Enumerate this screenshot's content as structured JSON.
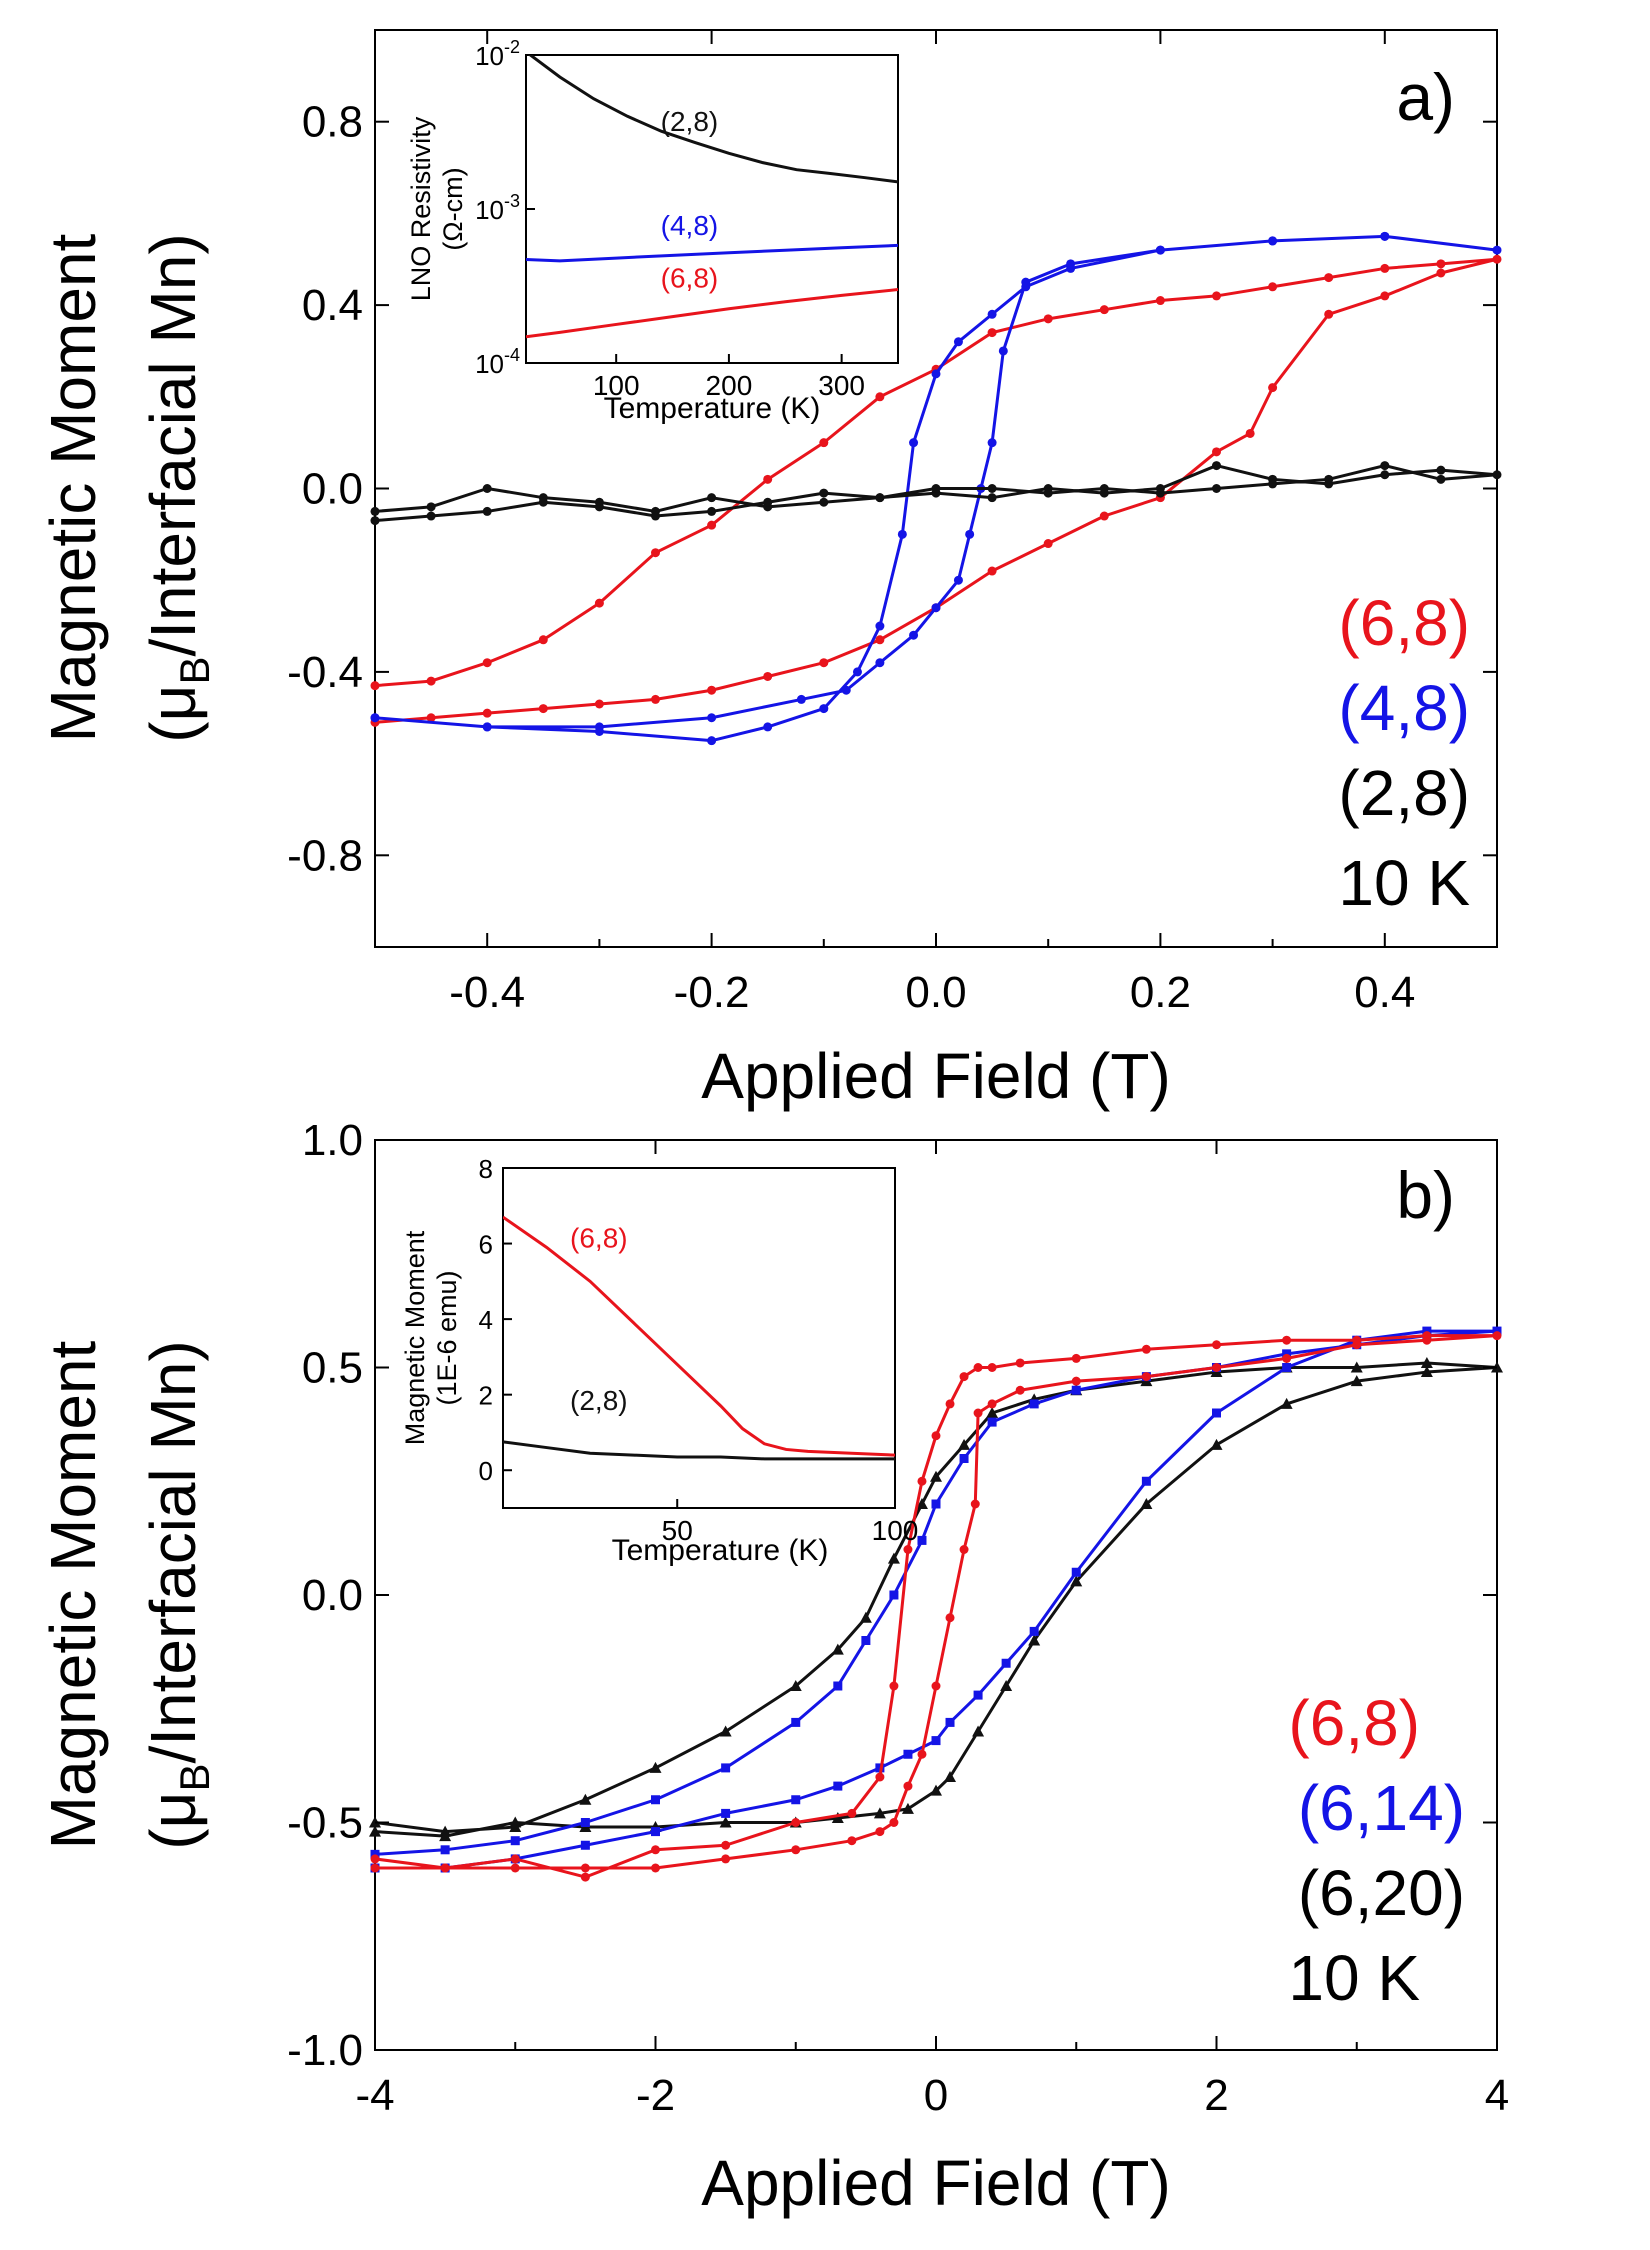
{
  "chart_data": [
    {
      "panel": "a)",
      "type": "line",
      "title": "",
      "xlabel": "Applied Field (T)",
      "ylabel_line1": "Magnetic Moment",
      "ylabel_line2_pre": "(μ",
      "ylabel_line2_sub": "B",
      "ylabel_line2_post": "/Interfacial Mn)",
      "xlim": [
        -0.5,
        0.5
      ],
      "ylim": [
        -1.0,
        1.0
      ],
      "xticks": [
        -0.4,
        -0.2,
        0.0,
        0.2,
        0.4
      ],
      "xtick_labels": [
        "-0.4",
        "-0.2",
        "0.0",
        "0.2",
        "0.4"
      ],
      "yticks": [
        -0.8,
        -0.4,
        0.0,
        0.4,
        0.8
      ],
      "ytick_labels": [
        "-0.8",
        "-0.4",
        "0.0",
        "0.4",
        "0.8"
      ],
      "legend": [
        "(6,8)",
        "(4,8)",
        "(2,8)",
        "10 K"
      ],
      "series": [
        {
          "name": "(6,8)",
          "color": "#e8141c",
          "marker": "circle",
          "x": [
            -0.5,
            -0.45,
            -0.4,
            -0.35,
            -0.3,
            -0.25,
            -0.2,
            -0.15,
            -0.1,
            -0.05,
            0.0,
            0.05,
            0.1,
            0.15,
            0.2,
            0.25,
            0.3,
            0.35,
            0.4,
            0.45,
            0.5,
            0.45,
            0.4,
            0.35,
            0.3,
            0.28,
            0.25,
            0.2,
            0.15,
            0.1,
            0.05,
            0.0,
            -0.05,
            -0.1,
            -0.15,
            -0.2,
            -0.25,
            -0.3,
            -0.35,
            -0.4,
            -0.45,
            -0.5
          ],
          "y": [
            -0.43,
            -0.42,
            -0.38,
            -0.33,
            -0.25,
            -0.14,
            -0.08,
            0.02,
            0.1,
            0.2,
            0.26,
            0.34,
            0.37,
            0.39,
            0.41,
            0.42,
            0.44,
            0.46,
            0.48,
            0.49,
            0.5,
            0.47,
            0.42,
            0.38,
            0.22,
            0.12,
            0.08,
            -0.02,
            -0.06,
            -0.12,
            -0.18,
            -0.26,
            -0.33,
            -0.38,
            -0.41,
            -0.44,
            -0.46,
            -0.47,
            -0.48,
            -0.49,
            -0.5,
            -0.51
          ]
        },
        {
          "name": "(4,8)",
          "color": "#1414e6",
          "marker": "circle",
          "x": [
            -0.5,
            -0.4,
            -0.3,
            -0.2,
            -0.15,
            -0.1,
            -0.07,
            -0.05,
            -0.03,
            -0.02,
            0.0,
            0.02,
            0.05,
            0.08,
            0.12,
            0.2,
            0.3,
            0.4,
            0.5,
            0.4,
            0.3,
            0.2,
            0.12,
            0.08,
            0.06,
            0.05,
            0.04,
            0.03,
            0.02,
            0.0,
            -0.02,
            -0.05,
            -0.08,
            -0.12,
            -0.2,
            -0.3,
            -0.4,
            -0.5
          ],
          "y": [
            -0.5,
            -0.52,
            -0.53,
            -0.55,
            -0.52,
            -0.48,
            -0.4,
            -0.3,
            -0.1,
            0.1,
            0.25,
            0.32,
            0.38,
            0.44,
            0.48,
            0.52,
            0.54,
            0.55,
            0.52,
            0.55,
            0.54,
            0.52,
            0.49,
            0.45,
            0.3,
            0.1,
            0.0,
            -0.1,
            -0.2,
            -0.26,
            -0.32,
            -0.38,
            -0.44,
            -0.46,
            -0.5,
            -0.52,
            -0.52,
            -0.5
          ]
        },
        {
          "name": "(2,8)",
          "color": "#111111",
          "marker": "circle",
          "x": [
            -0.5,
            -0.45,
            -0.4,
            -0.35,
            -0.3,
            -0.25,
            -0.2,
            -0.15,
            -0.1,
            -0.05,
            0.0,
            0.05,
            0.1,
            0.15,
            0.2,
            0.25,
            0.3,
            0.35,
            0.4,
            0.45,
            0.5,
            0.45,
            0.4,
            0.35,
            0.3,
            0.25,
            0.2,
            0.15,
            0.1,
            0.05,
            0.0,
            -0.05,
            -0.1,
            -0.15,
            -0.2,
            -0.25,
            -0.3,
            -0.35,
            -0.4,
            -0.45,
            -0.5
          ],
          "y": [
            -0.05,
            -0.04,
            0.0,
            -0.02,
            -0.03,
            -0.05,
            -0.02,
            -0.04,
            -0.03,
            -0.02,
            -0.01,
            -0.02,
            0.0,
            -0.01,
            0.0,
            0.05,
            0.02,
            0.01,
            0.03,
            0.04,
            0.03,
            0.02,
            0.05,
            0.02,
            0.01,
            0.0,
            -0.01,
            0.0,
            -0.01,
            0.0,
            0.0,
            -0.02,
            -0.01,
            -0.03,
            -0.05,
            -0.06,
            -0.04,
            -0.03,
            -0.05,
            -0.06,
            -0.07
          ]
        }
      ],
      "inset": {
        "type": "line",
        "xlabel": "Temperature (K)",
        "ylabel_line1": "LNO Resistivity",
        "ylabel_line2": "(Ω-cm)",
        "yscale": "log",
        "xlim": [
          20,
          350
        ],
        "ylim": [
          0.0001,
          0.01
        ],
        "xticks": [
          100,
          200,
          300
        ],
        "xtick_labels": [
          "100",
          "200",
          "300"
        ],
        "ytick_exponents": [
          -4,
          -3,
          -2
        ],
        "ytick_base": "10",
        "series": [
          {
            "name": "(2,8)",
            "color": "#111111",
            "x": [
              20,
              50,
              80,
              110,
              140,
              170,
              200,
              230,
              260,
              290,
              320,
              350
            ],
            "y": [
              0.0105,
              0.0072,
              0.0052,
              0.004,
              0.0032,
              0.0027,
              0.0023,
              0.002,
              0.0018,
              0.0017,
              0.0016,
              0.0015
            ]
          },
          {
            "name": "(4,8)",
            "color": "#1414e6",
            "x": [
              20,
              50,
              100,
              150,
              200,
              250,
              300,
              350
            ],
            "y": [
              0.00047,
              0.00046,
              0.00048,
              0.0005,
              0.00052,
              0.00054,
              0.00056,
              0.00058
            ]
          },
          {
            "name": "(6,8)",
            "color": "#e8141c",
            "x": [
              20,
              50,
              100,
              150,
              200,
              250,
              300,
              350
            ],
            "y": [
              0.000148,
              0.000158,
              0.000178,
              0.0002,
              0.000225,
              0.00025,
              0.000275,
              0.0003
            ]
          }
        ],
        "labels": [
          {
            "text": "(2,8)",
            "color": "#111111",
            "x": 165,
            "y": 0.0032
          },
          {
            "text": "(4,8)",
            "color": "#1414e6",
            "x": 165,
            "y": 0.00068
          },
          {
            "text": "(6,8)",
            "color": "#e8141c",
            "x": 165,
            "y": 0.00031
          }
        ]
      }
    },
    {
      "panel": "b)",
      "type": "line",
      "title": "",
      "xlabel": "Applied Field (T)",
      "ylabel_line1": "Magnetic Moment",
      "ylabel_line2_pre": "(μ",
      "ylabel_line2_sub": "B",
      "ylabel_line2_post": "/Interfacial Mn)",
      "xlim": [
        -4,
        4
      ],
      "ylim": [
        -1.0,
        1.0
      ],
      "xticks": [
        -4,
        -2,
        0,
        2,
        4
      ],
      "xtick_labels": [
        "-4",
        "-2",
        "0",
        "2",
        "4"
      ],
      "yticks": [
        -1.0,
        -0.5,
        0.0,
        0.5,
        1.0
      ],
      "ytick_labels": [
        "-1.0",
        "-0.5",
        "0.0",
        "0.5",
        "1.0"
      ],
      "legend": [
        "(6,8)",
        "(6,14)",
        "(6,20)",
        "10 K"
      ],
      "series": [
        {
          "name": "(6,20)",
          "color": "#111111",
          "marker": "triangle",
          "x": [
            -4,
            -3.5,
            -3,
            -2.5,
            -2,
            -1.5,
            -1,
            -0.7,
            -0.5,
            -0.3,
            -0.1,
            0,
            0.2,
            0.4,
            0.7,
            1,
            1.5,
            2,
            2.5,
            3,
            3.5,
            4,
            3.5,
            3,
            2.5,
            2,
            1.5,
            1,
            0.7,
            0.5,
            0.3,
            0.1,
            0,
            -0.2,
            -0.4,
            -0.7,
            -1,
            -1.5,
            -2,
            -2.5,
            -3,
            -3.5,
            -4
          ],
          "y": [
            -0.5,
            -0.52,
            -0.51,
            -0.45,
            -0.38,
            -0.3,
            -0.2,
            -0.12,
            -0.05,
            0.08,
            0.2,
            0.26,
            0.33,
            0.4,
            0.43,
            0.45,
            0.47,
            0.49,
            0.5,
            0.5,
            0.51,
            0.5,
            0.49,
            0.47,
            0.42,
            0.33,
            0.2,
            0.03,
            -0.1,
            -0.2,
            -0.3,
            -0.4,
            -0.43,
            -0.47,
            -0.48,
            -0.49,
            -0.5,
            -0.5,
            -0.51,
            -0.51,
            -0.5,
            -0.53,
            -0.52
          ]
        },
        {
          "name": "(6,14)",
          "color": "#1414e6",
          "marker": "square",
          "x": [
            -4,
            -3.5,
            -3,
            -2.5,
            -2,
            -1.5,
            -1,
            -0.7,
            -0.5,
            -0.3,
            -0.1,
            0,
            0.2,
            0.4,
            0.7,
            1,
            1.5,
            2,
            2.5,
            3,
            3.5,
            4,
            3.5,
            3,
            2.5,
            2,
            1.5,
            1,
            0.7,
            0.5,
            0.3,
            0.1,
            0,
            -0.2,
            -0.4,
            -0.7,
            -1,
            -1.5,
            -2,
            -2.5,
            -3,
            -3.5,
            -4
          ],
          "y": [
            -0.57,
            -0.56,
            -0.54,
            -0.5,
            -0.45,
            -0.38,
            -0.28,
            -0.2,
            -0.1,
            0.0,
            0.12,
            0.2,
            0.3,
            0.38,
            0.42,
            0.45,
            0.48,
            0.5,
            0.53,
            0.55,
            0.57,
            0.58,
            0.58,
            0.56,
            0.5,
            0.4,
            0.25,
            0.05,
            -0.08,
            -0.15,
            -0.22,
            -0.28,
            -0.32,
            -0.35,
            -0.38,
            -0.42,
            -0.45,
            -0.48,
            -0.52,
            -0.55,
            -0.58,
            -0.6,
            -0.6
          ]
        },
        {
          "name": "(6,8)",
          "color": "#e8141c",
          "marker": "circle",
          "x": [
            -4,
            -3.5,
            -3,
            -2.5,
            -2,
            -1.5,
            -1,
            -0.6,
            -0.4,
            -0.3,
            -0.2,
            -0.1,
            0,
            0.1,
            0.2,
            0.3,
            0.4,
            0.6,
            1,
            1.5,
            2,
            2.5,
            3,
            3.5,
            4,
            3.5,
            3,
            2.5,
            2,
            1.5,
            1,
            0.6,
            0.4,
            0.3,
            0.28,
            0.2,
            0.1,
            0,
            -0.1,
            -0.2,
            -0.3,
            -0.4,
            -0.6,
            -1,
            -1.5,
            -2,
            -2.5,
            -3,
            -3.5,
            -4
          ],
          "y": [
            -0.58,
            -0.6,
            -0.58,
            -0.62,
            -0.56,
            -0.55,
            -0.5,
            -0.48,
            -0.4,
            -0.2,
            0.1,
            0.25,
            0.35,
            0.42,
            0.48,
            0.5,
            0.5,
            0.51,
            0.52,
            0.54,
            0.55,
            0.56,
            0.56,
            0.57,
            0.57,
            0.56,
            0.55,
            0.52,
            0.5,
            0.48,
            0.47,
            0.45,
            0.42,
            0.4,
            0.2,
            0.1,
            -0.05,
            -0.2,
            -0.35,
            -0.42,
            -0.5,
            -0.52,
            -0.54,
            -0.56,
            -0.58,
            -0.6,
            -0.6,
            -0.6,
            -0.6,
            -0.6
          ]
        }
      ],
      "inset": {
        "type": "line",
        "xlabel": "Temperature (K)",
        "ylabel_line1": "Magnetic Moment",
        "ylabel_line2": "(1E-6 emu)",
        "yscale": "linear",
        "xlim": [
          10,
          100
        ],
        "ylim": [
          -1,
          8
        ],
        "xticks": [
          50,
          100
        ],
        "xtick_labels": [
          "50",
          "100"
        ],
        "yticks": [
          0,
          2,
          4,
          6,
          8
        ],
        "ytick_labels": [
          "0",
          "2",
          "4",
          "6",
          "8"
        ],
        "series": [
          {
            "name": "(6,8)",
            "color": "#e8141c",
            "x": [
              10,
              20,
              30,
              40,
              50,
              60,
              65,
              70,
              75,
              80,
              90,
              100
            ],
            "y": [
              6.7,
              5.9,
              5.0,
              3.9,
              2.8,
              1.7,
              1.1,
              0.7,
              0.55,
              0.5,
              0.45,
              0.4
            ]
          },
          {
            "name": "(2,8)",
            "color": "#111111",
            "x": [
              10,
              20,
              30,
              40,
              50,
              60,
              70,
              80,
              90,
              100
            ],
            "y": [
              0.75,
              0.6,
              0.45,
              0.4,
              0.35,
              0.35,
              0.3,
              0.3,
              0.3,
              0.3
            ]
          }
        ],
        "labels": [
          {
            "text": "(6,8)",
            "color": "#e8141c",
            "x": 32,
            "y": 5.9
          },
          {
            "text": "(2,8)",
            "color": "#111111",
            "x": 32,
            "y": 1.6
          }
        ]
      }
    }
  ],
  "colors": {
    "red": "#e8141c",
    "blue": "#1414e6",
    "black": "#111111"
  }
}
